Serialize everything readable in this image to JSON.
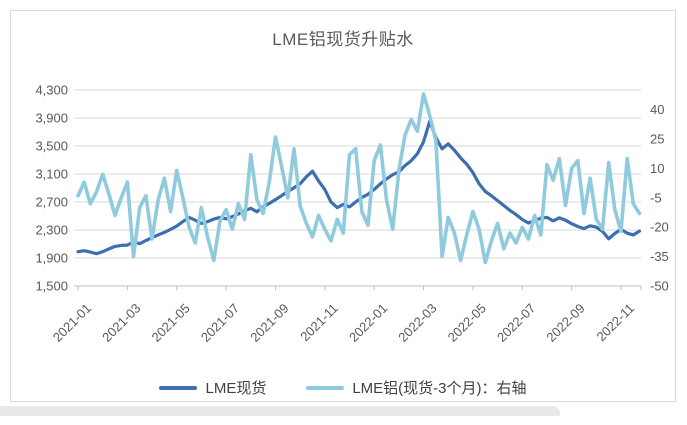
{
  "card": {
    "title": "LME铝现货升贴水"
  },
  "legend": [
    {
      "label": "LME现货",
      "color": "#3D6EB0"
    },
    {
      "label": "LME铝(现货-3个月)：右轴",
      "color": "#8FCBDC"
    }
  ],
  "colors": {
    "series_dark_blue": "#3D6EB0",
    "series_light_blue": "#8FCBDC",
    "gridline": "#d9d9d9",
    "axis_line": "#bfbfbf",
    "axis_text": "#595959",
    "title_text": "#595959",
    "legend_text": "#404040"
  },
  "chart_data": {
    "type": "line",
    "title": "LME铝现货升贴水",
    "grid": "horizontal-only",
    "legend_position": "bottom",
    "x_tick_labels": [
      "2021-01",
      "2021-03",
      "2021-05",
      "2021-07",
      "2021-09",
      "2021-11",
      "2022-01",
      "2022-03",
      "2022-05",
      "2022-07",
      "2022-09",
      "2022-11"
    ],
    "x_tick_month_interval": 2,
    "x_step": 0.25,
    "x_unit": "months since 2021-01 (weekly points)",
    "left_axis": {
      "min": 1500,
      "max": 4300,
      "step": 400,
      "tick_labels": [
        "4,300",
        "3,900",
        "3,500",
        "3,100",
        "2,700",
        "2,300",
        "1,900",
        "1,500"
      ],
      "tick_values": [
        4300,
        3900,
        3500,
        3100,
        2700,
        2300,
        1900,
        1500
      ]
    },
    "right_axis": {
      "min": -50,
      "max": 50,
      "tick_labels": [
        "40",
        "25",
        "10",
        "-5",
        "-20",
        "-35",
        "-50"
      ],
      "tick_values": [
        40,
        25,
        10,
        -5,
        -20,
        -35,
        -50
      ]
    },
    "series": [
      {
        "name": "LME现货",
        "axis": "left",
        "color": "#3D6EB0",
        "stroke_width": 3.2,
        "values": [
          1990,
          2005,
          1985,
          1962,
          1990,
          2030,
          2065,
          2080,
          2085,
          2130,
          2105,
          2150,
          2190,
          2230,
          2265,
          2310,
          2355,
          2420,
          2480,
          2440,
          2395,
          2420,
          2455,
          2480,
          2460,
          2490,
          2530,
          2575,
          2610,
          2560,
          2630,
          2680,
          2735,
          2790,
          2850,
          2905,
          2960,
          3060,
          3140,
          3000,
          2880,
          2700,
          2620,
          2665,
          2630,
          2700,
          2765,
          2810,
          2880,
          2960,
          3030,
          3090,
          3130,
          3220,
          3290,
          3390,
          3560,
          3850,
          3620,
          3460,
          3530,
          3440,
          3330,
          3240,
          3120,
          2960,
          2850,
          2790,
          2720,
          2650,
          2580,
          2520,
          2450,
          2400,
          2435,
          2470,
          2480,
          2430,
          2475,
          2440,
          2390,
          2350,
          2320,
          2360,
          2340,
          2280,
          2175,
          2250,
          2310,
          2255,
          2230,
          2285
        ]
      },
      {
        "name": "LME铝(现货-3个月)：右轴",
        "axis": "right",
        "color": "#8FCBDC",
        "stroke_width": 3.6,
        "values": [
          -4,
          3,
          -8,
          -2,
          7,
          -3,
          -14,
          -5,
          3,
          -35,
          -10,
          -4,
          -26,
          -6,
          5,
          -12,
          9,
          -5,
          -20,
          -28,
          -10,
          -25,
          -37,
          -17,
          -11,
          -21,
          -8,
          -16,
          17,
          -6,
          -13,
          3,
          26,
          11,
          -5,
          20,
          -9,
          -18,
          -25,
          -14,
          -21,
          -27,
          -16,
          -23,
          17,
          20,
          -12,
          -19,
          14,
          22,
          -6,
          -21,
          9,
          27,
          35,
          29,
          48,
          37,
          24,
          -35,
          -15,
          -23,
          -37,
          -24,
          -12,
          -21,
          -38,
          -27,
          -18,
          -31,
          -23,
          -28,
          -20,
          -26,
          -14,
          -24,
          12,
          4,
          15,
          -9,
          10,
          14,
          -13,
          5,
          -16,
          -21,
          13,
          -11,
          -22,
          15,
          -8,
          -13
        ]
      }
    ]
  }
}
